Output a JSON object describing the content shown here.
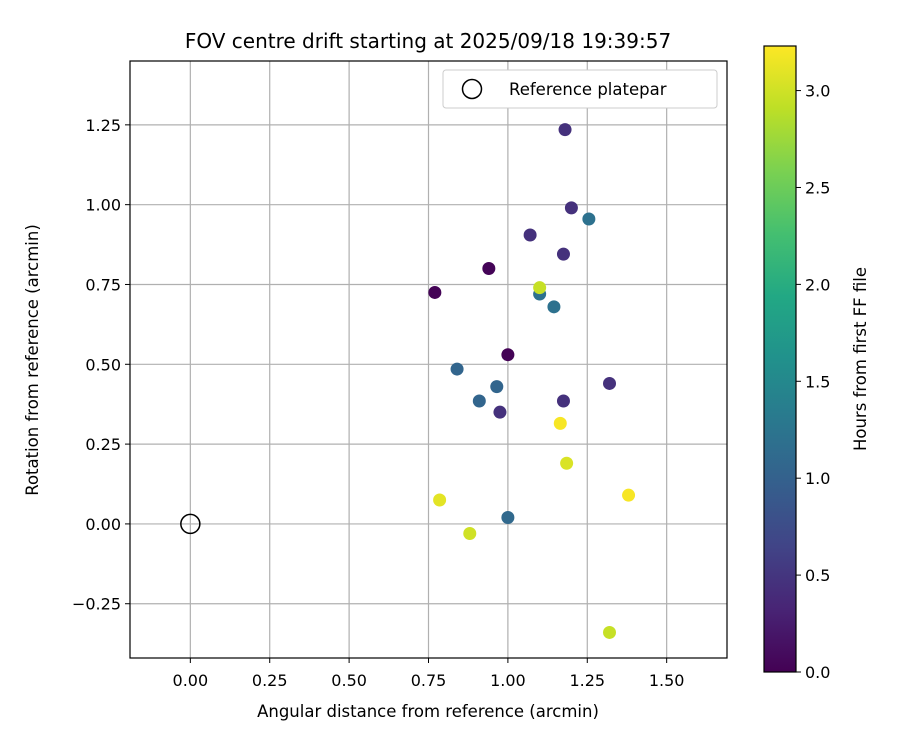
{
  "chart_data": {
    "type": "scatter",
    "title": "FOV centre drift starting at 2025/09/18 19:39:57",
    "xlabel": "Angular distance from reference (arcmin)",
    "ylabel": "Rotation from reference (arcmin)",
    "xlim": [
      -0.19,
      1.69
    ],
    "ylim": [
      -0.42,
      1.45
    ],
    "xticks": [
      0.0,
      0.25,
      0.5,
      0.75,
      1.0,
      1.25,
      1.5
    ],
    "xtick_labels": [
      "0.00",
      "0.25",
      "0.50",
      "0.75",
      "1.00",
      "1.25",
      "1.50"
    ],
    "yticks": [
      -0.25,
      0.0,
      0.25,
      0.5,
      0.75,
      1.0,
      1.25
    ],
    "ytick_labels": [
      "−0.25",
      "0.00",
      "0.25",
      "0.50",
      "0.75",
      "1.00",
      "1.25"
    ],
    "grid": true,
    "legend": {
      "location": "top-right",
      "entries": [
        {
          "label": "Reference platepar",
          "marker": "open-circle"
        }
      ]
    },
    "reference_point": {
      "x": 0.0,
      "y": 0.0,
      "label": "Reference platepar"
    },
    "colorbar": {
      "label": "Hours from first FF file",
      "colormap": "viridis",
      "range": [
        0.0,
        3.23
      ],
      "ticks": [
        0.0,
        0.5,
        1.0,
        1.5,
        2.0,
        2.5,
        3.0
      ],
      "tick_labels": [
        "0.0",
        "0.5",
        "1.0",
        "1.5",
        "2.0",
        "2.5",
        "3.0"
      ]
    },
    "points": [
      {
        "x": 0.77,
        "y": 0.725,
        "hours": 0.02
      },
      {
        "x": 0.94,
        "y": 0.8,
        "hours": 0.03
      },
      {
        "x": 1.0,
        "y": 0.53,
        "hours": 0.02
      },
      {
        "x": 1.18,
        "y": 1.235,
        "hours": 0.45
      },
      {
        "x": 1.2,
        "y": 0.99,
        "hours": 0.45
      },
      {
        "x": 1.07,
        "y": 0.905,
        "hours": 0.45
      },
      {
        "x": 1.175,
        "y": 0.845,
        "hours": 0.45
      },
      {
        "x": 1.32,
        "y": 0.44,
        "hours": 0.45
      },
      {
        "x": 0.975,
        "y": 0.35,
        "hours": 0.45
      },
      {
        "x": 1.175,
        "y": 0.385,
        "hours": 0.45
      },
      {
        "x": 1.255,
        "y": 0.955,
        "hours": 1.2
      },
      {
        "x": 1.1,
        "y": 0.72,
        "hours": 1.2
      },
      {
        "x": 1.145,
        "y": 0.68,
        "hours": 1.2
      },
      {
        "x": 0.84,
        "y": 0.485,
        "hours": 1.05
      },
      {
        "x": 0.965,
        "y": 0.43,
        "hours": 1.05
      },
      {
        "x": 0.91,
        "y": 0.385,
        "hours": 1.05
      },
      {
        "x": 1.0,
        "y": 0.02,
        "hours": 1.1
      },
      {
        "x": 1.1,
        "y": 0.74,
        "hours": 2.95
      },
      {
        "x": 1.165,
        "y": 0.315,
        "hours": 3.2
      },
      {
        "x": 1.185,
        "y": 0.19,
        "hours": 3.05
      },
      {
        "x": 1.38,
        "y": 0.09,
        "hours": 3.2
      },
      {
        "x": 0.785,
        "y": 0.075,
        "hours": 3.1
      },
      {
        "x": 0.88,
        "y": -0.03,
        "hours": 3.0
      },
      {
        "x": 1.32,
        "y": -0.34,
        "hours": 2.95
      }
    ]
  }
}
